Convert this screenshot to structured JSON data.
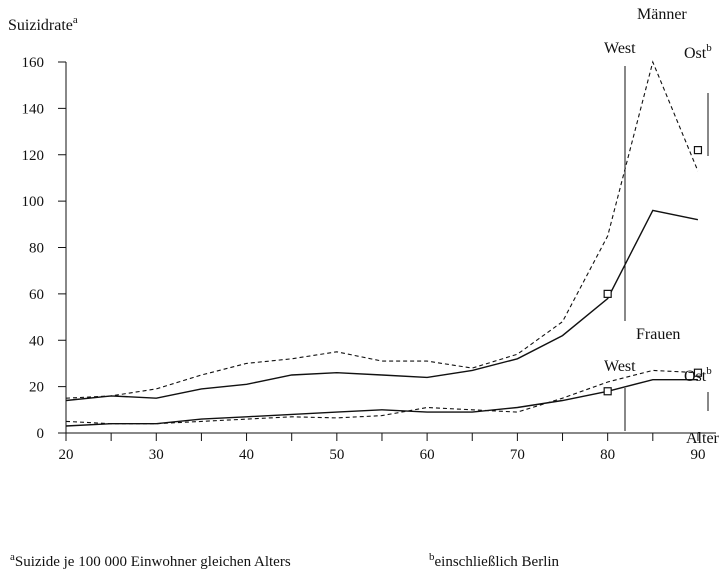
{
  "chart_data": {
    "type": "line",
    "ylabel": "Suizidrate",
    "ylabel_mark": "a",
    "xlabel": "Alter",
    "xlim": [
      20,
      92
    ],
    "ylim": [
      0,
      160
    ],
    "x_ticks": [
      20,
      25,
      30,
      35,
      40,
      45,
      50,
      55,
      60,
      65,
      70,
      75,
      80,
      85,
      90
    ],
    "x_tick_labels": [
      "20",
      "30",
      "40",
      "50",
      "60",
      "70",
      "80",
      "90"
    ],
    "x_tick_label_values": [
      20,
      30,
      40,
      50,
      60,
      70,
      80,
      90
    ],
    "y_ticks": [
      0,
      20,
      40,
      60,
      80,
      100,
      120,
      140,
      160
    ],
    "y_tick_labels": [
      "0",
      "20",
      "40",
      "60",
      "80",
      "100",
      "120",
      "140",
      "160"
    ],
    "series": [
      {
        "name": "West",
        "group": "Männer",
        "style": "solid",
        "x": [
          20,
          25,
          30,
          35,
          40,
          45,
          50,
          55,
          60,
          65,
          70,
          75,
          80,
          85,
          90
        ],
        "y": [
          14,
          16,
          15,
          19,
          21,
          25,
          26,
          25,
          24,
          27,
          32,
          42,
          58,
          96,
          92
        ]
      },
      {
        "name": "Ost",
        "group": "Männer",
        "style": "dashed",
        "x": [
          20,
          25,
          30,
          35,
          40,
          45,
          50,
          55,
          60,
          65,
          70,
          75,
          80,
          85,
          90
        ],
        "y": [
          15,
          16,
          19,
          25,
          30,
          32,
          35,
          31,
          31,
          28,
          34,
          48,
          85,
          160,
          113
        ]
      },
      {
        "name": "West",
        "group": "Frauen",
        "style": "solid",
        "x": [
          20,
          25,
          30,
          35,
          40,
          45,
          50,
          55,
          60,
          65,
          70,
          75,
          80,
          85,
          90
        ],
        "y": [
          3,
          4,
          4,
          6,
          7,
          8,
          9,
          10,
          9,
          9,
          11,
          14,
          18,
          23,
          23
        ]
      },
      {
        "name": "Ost",
        "group": "Frauen",
        "style": "dashed",
        "x": [
          20,
          25,
          30,
          35,
          40,
          45,
          50,
          55,
          60,
          65,
          70,
          75,
          80,
          85,
          90
        ],
        "y": [
          5,
          4,
          4,
          5,
          6,
          7,
          6.5,
          7.5,
          11,
          10,
          9,
          15,
          22,
          27,
          26
        ]
      }
    ],
    "annotations": {
      "maenner": "Männer",
      "frauen": "Frauen",
      "west_m": "West",
      "ost_m": "Ost",
      "ost_m_mark": "b",
      "west_f": "West",
      "ost_f": "Ost",
      "ost_f_mark": "b"
    },
    "markers": [
      {
        "id": "west-m",
        "x": 80,
        "y": 60
      },
      {
        "id": "ost-m",
        "x": 90,
        "y": 122
      },
      {
        "id": "west-f",
        "x": 80,
        "y": 18
      },
      {
        "id": "ost-f",
        "x": 90,
        "y": 26
      }
    ],
    "footnotes": {
      "a_mark": "a",
      "a_text": "Suizide je 100 000 Einwohner gleichen Alters",
      "b_mark": "b",
      "b_text": "einschließlich Berlin"
    }
  }
}
